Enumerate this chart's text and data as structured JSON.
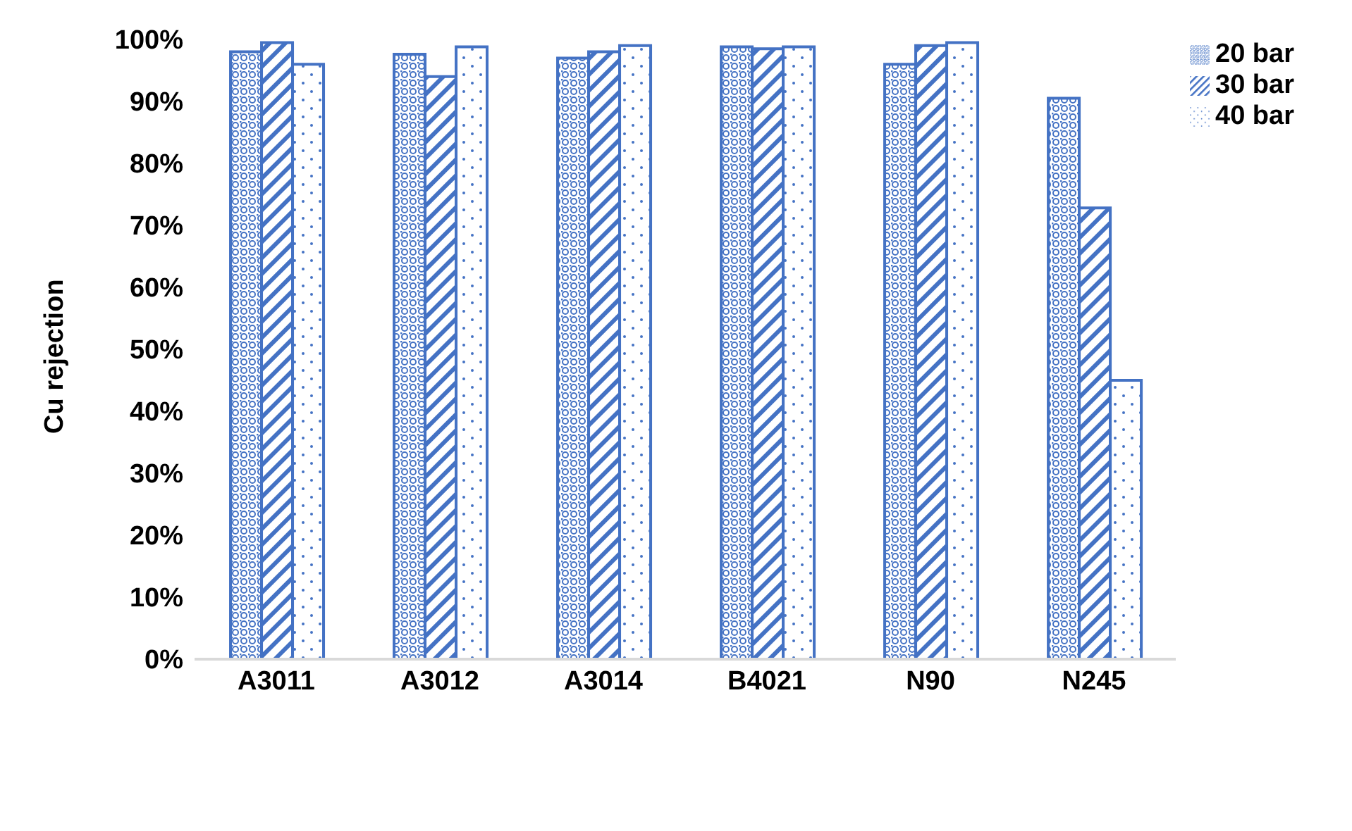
{
  "chart_data": {
    "type": "bar",
    "ylabel": "Cu rejection",
    "categories": [
      "A3011",
      "A3012",
      "A3014",
      "B4021",
      "N90",
      "N245"
    ],
    "series": [
      {
        "name": "20 bar",
        "color": "#4472c4",
        "values": [
          98,
          97.6,
          97,
          98.8,
          96,
          90.5
        ]
      },
      {
        "name": "30 bar",
        "color": "#4472c4",
        "values": [
          99.5,
          94,
          98,
          98.5,
          99,
          72.8
        ]
      },
      {
        "name": "40 bar",
        "color": "#4472c4",
        "values": [
          96,
          98.8,
          99,
          98.8,
          99.5,
          45
        ]
      }
    ],
    "ylim": [
      0,
      100
    ],
    "yticks": [
      {
        "value": 0,
        "label": "0%"
      },
      {
        "value": 10,
        "label": "10%"
      },
      {
        "value": 20,
        "label": "20%"
      },
      {
        "value": 30,
        "label": "30%"
      },
      {
        "value": 40,
        "label": "40%"
      },
      {
        "value": 50,
        "label": "50%"
      },
      {
        "value": 60,
        "label": "60%"
      },
      {
        "value": 70,
        "label": "70%"
      },
      {
        "value": 80,
        "label": "80%"
      },
      {
        "value": 90,
        "label": "90%"
      },
      {
        "value": 100,
        "label": "100%"
      }
    ],
    "legend": "top right",
    "grid": false
  }
}
